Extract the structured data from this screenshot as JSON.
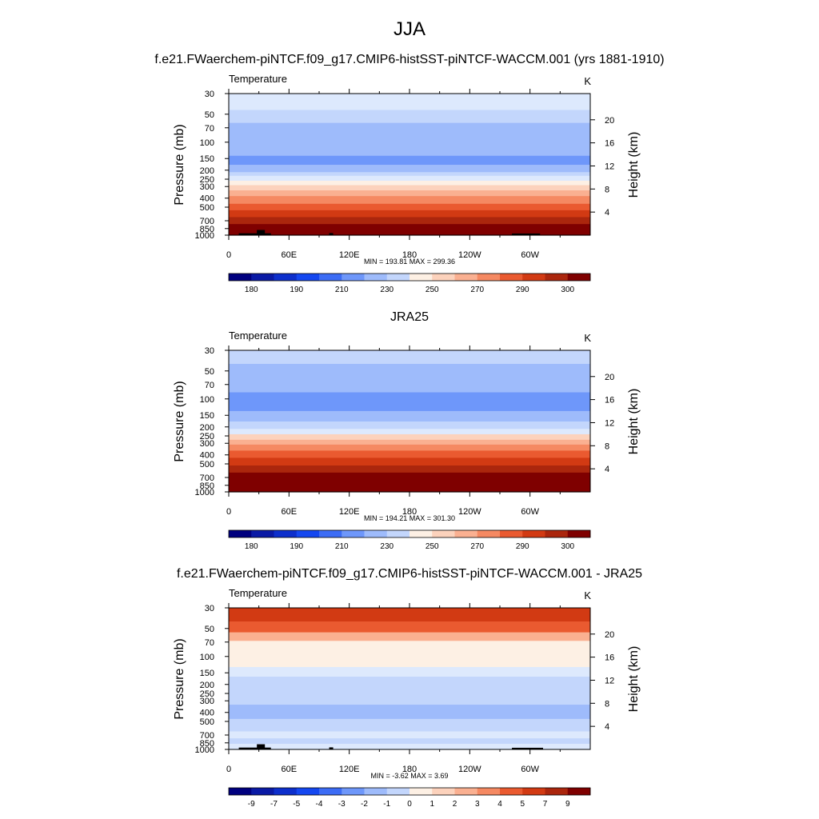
{
  "figure": {
    "title": "JJA",
    "colors": {
      "ramp": [
        "#00007f",
        "#0a1aa5",
        "#0d2fcc",
        "#1447f0",
        "#3c6cf5",
        "#6e97fa",
        "#9ebbfb",
        "#c3d6fc",
        "#dde9fd",
        "#fdf0e4",
        "#fcd2bc",
        "#fab091",
        "#f58962",
        "#ea5a30",
        "#d23a13",
        "#ab260d",
        "#7f0000"
      ],
      "topography": "#000000"
    }
  },
  "chart_data": [
    {
      "type": "heatmap",
      "title": "f.e21.FWaerchem-piNTCF.f09_g17.CMIP6-histSST-piNTCF-WACCM.001 (yrs 1881-1910)",
      "variable": "Temperature",
      "units": "K",
      "xlabel": "",
      "ylabel": "Pressure (mb)",
      "y2label": "Height (km)",
      "x_ticks": [
        "0",
        "60E",
        "120E",
        "180",
        "120W",
        "60W"
      ],
      "x_tick_lon": [
        0,
        60,
        120,
        180,
        240,
        300
      ],
      "xlim": [
        0,
        360
      ],
      "y_ticks": [
        "30",
        "50",
        "70",
        "100",
        "150",
        "200",
        "250",
        "300",
        "400",
        "500",
        "700",
        "850",
        "1000"
      ],
      "y_tick_values": [
        30,
        50,
        70,
        100,
        150,
        200,
        250,
        300,
        400,
        500,
        700,
        850,
        1000
      ],
      "ylim": [
        1000,
        30
      ],
      "height_ticks": [
        "4",
        "8",
        "12",
        "16",
        "20"
      ],
      "height_values": [
        4,
        8,
        12,
        16,
        20
      ],
      "min_text": "MIN = 193.81  MAX = 299.36",
      "min": 193.81,
      "max": 299.36,
      "colorbar_labels": [
        "180",
        "190",
        "210",
        "230",
        "250",
        "270",
        "290",
        "300"
      ],
      "profile": [
        {
          "p": 30,
          "level": 5
        },
        {
          "p": 45,
          "level": 4
        },
        {
          "p": 62,
          "level": 3
        },
        {
          "p": 140,
          "level": 2
        },
        {
          "p": 175,
          "level": 3
        },
        {
          "p": 210,
          "level": 4
        },
        {
          "p": 230,
          "level": 5
        },
        {
          "p": 260,
          "level": 6
        },
        {
          "p": 290,
          "level": 7
        },
        {
          "p": 330,
          "level": 8
        },
        {
          "p": 380,
          "level": 9
        },
        {
          "p": 460,
          "level": 10
        },
        {
          "p": 540,
          "level": 11
        },
        {
          "p": 640,
          "level": 12
        },
        {
          "p": 760,
          "level": 13
        },
        {
          "p": 900,
          "level": 14
        },
        {
          "p": 970,
          "level": 15
        }
      ],
      "ramp_start": 3,
      "topography": [
        {
          "lon_start": 10,
          "lon_end": 42,
          "top_p": 955
        },
        {
          "lon_start": 28,
          "lon_end": 36,
          "top_p": 880
        },
        {
          "lon_start": 100,
          "lon_end": 104,
          "top_p": 950
        },
        {
          "lon_start": 282,
          "lon_end": 310,
          "top_p": 960
        }
      ]
    },
    {
      "type": "heatmap",
      "title": "JRA25",
      "variable": "Temperature",
      "units": "K",
      "xlabel": "",
      "ylabel": "Pressure (mb)",
      "y2label": "Height (km)",
      "x_ticks": [
        "0",
        "60E",
        "120E",
        "180",
        "120W",
        "60W"
      ],
      "x_tick_lon": [
        0,
        60,
        120,
        180,
        240,
        300
      ],
      "xlim": [
        0,
        360
      ],
      "y_ticks": [
        "30",
        "50",
        "70",
        "100",
        "150",
        "200",
        "250",
        "300",
        "400",
        "500",
        "700",
        "850",
        "1000"
      ],
      "y_tick_values": [
        30,
        50,
        70,
        100,
        150,
        200,
        250,
        300,
        400,
        500,
        700,
        850,
        1000
      ],
      "ylim": [
        1000,
        30
      ],
      "height_ticks": [
        "4",
        "8",
        "12",
        "16",
        "20"
      ],
      "height_values": [
        4,
        8,
        12,
        16,
        20
      ],
      "min_text": "MIN = 194.21  MAX = 301.30",
      "min": 194.21,
      "max": 301.3,
      "colorbar_labels": [
        "180",
        "190",
        "210",
        "230",
        "250",
        "270",
        "290",
        "300"
      ],
      "profile": [
        {
          "p": 30,
          "level": 4
        },
        {
          "p": 42,
          "level": 3
        },
        {
          "p": 85,
          "level": 2
        },
        {
          "p": 135,
          "level": 3
        },
        {
          "p": 175,
          "level": 4
        },
        {
          "p": 210,
          "level": 5
        },
        {
          "p": 240,
          "level": 7
        },
        {
          "p": 275,
          "level": 8
        },
        {
          "p": 310,
          "level": 9
        },
        {
          "p": 360,
          "level": 10
        },
        {
          "p": 430,
          "level": 11
        },
        {
          "p": 520,
          "level": 12
        },
        {
          "p": 620,
          "level": 13
        },
        {
          "p": 760,
          "level": 14
        },
        {
          "p": 900,
          "level": 15
        }
      ],
      "ramp_start": 3,
      "topography": []
    },
    {
      "type": "heatmap",
      "title": "f.e21.FWaerchem-piNTCF.f09_g17.CMIP6-histSST-piNTCF-WACCM.001 - JRA25",
      "variable": "Temperature",
      "units": "K",
      "xlabel": "",
      "ylabel": "Pressure (mb)",
      "y2label": "Height (km)",
      "x_ticks": [
        "0",
        "60E",
        "120E",
        "180",
        "120W",
        "60W"
      ],
      "x_tick_lon": [
        0,
        60,
        120,
        180,
        240,
        300
      ],
      "xlim": [
        0,
        360
      ],
      "y_ticks": [
        "30",
        "50",
        "70",
        "100",
        "150",
        "200",
        "250",
        "300",
        "400",
        "500",
        "700",
        "850",
        "1000"
      ],
      "y_tick_values": [
        30,
        50,
        70,
        100,
        150,
        200,
        250,
        300,
        400,
        500,
        700,
        850,
        1000
      ],
      "ylim": [
        1000,
        30
      ],
      "height_ticks": [
        "4",
        "8",
        "12",
        "16",
        "20"
      ],
      "height_values": [
        4,
        8,
        12,
        16,
        20
      ],
      "min_text": "MIN =  -3.62  MAX =   3.69",
      "min": -3.62,
      "max": 3.69,
      "colorbar_labels": [
        "-9",
        "-7",
        "-5",
        "-4",
        "-3",
        "-2",
        "-1",
        "0",
        "1",
        "2",
        "3",
        "4",
        "5",
        "7",
        "9"
      ],
      "profile": [
        {
          "p": 30,
          "level": 13
        },
        {
          "p": 42,
          "level": 12
        },
        {
          "p": 55,
          "level": 10
        },
        {
          "p": 68,
          "level": 8
        },
        {
          "p": 130,
          "level": 7
        },
        {
          "p": 165,
          "level": 6
        },
        {
          "p": 330,
          "level": 5
        },
        {
          "p": 470,
          "level": 6
        },
        {
          "p": 640,
          "level": 7
        },
        {
          "p": 760,
          "level": 6
        },
        {
          "p": 870,
          "level": 7
        }
      ],
      "ramp_start": 1,
      "topography": [
        {
          "lon_start": 10,
          "lon_end": 42,
          "top_p": 955
        },
        {
          "lon_start": 28,
          "lon_end": 36,
          "top_p": 880
        },
        {
          "lon_start": 100,
          "lon_end": 104,
          "top_p": 950
        },
        {
          "lon_start": 282,
          "lon_end": 313,
          "top_p": 960
        }
      ]
    }
  ]
}
